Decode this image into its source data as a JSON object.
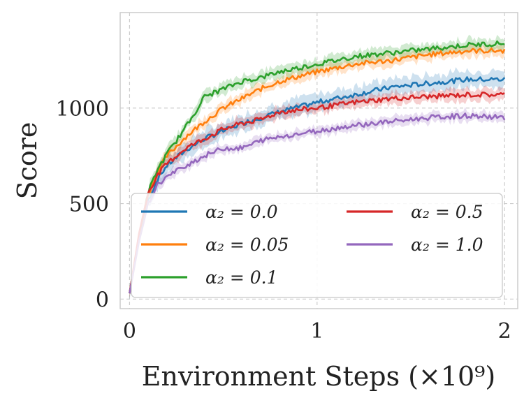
{
  "chart_data": {
    "type": "line",
    "title": "",
    "xlabel": "Environment Steps (×10⁹)",
    "ylabel": "Score",
    "xlim": [
      -0.05,
      2.07
    ],
    "ylim": [
      -50,
      1500
    ],
    "xticks": [
      0,
      1,
      2
    ],
    "xtick_labels": [
      "0",
      "1",
      "2"
    ],
    "yticks": [
      0,
      500,
      1000
    ],
    "ytick_labels": [
      "0",
      "500",
      "1000"
    ],
    "grid": true,
    "legend_position": "lower-center",
    "legend_columns": 2,
    "x": [
      0,
      0.05,
      0.1,
      0.15,
      0.2,
      0.3,
      0.4,
      0.5,
      0.6,
      0.7,
      0.8,
      1.0,
      1.2,
      1.4,
      1.6,
      1.8,
      2.0
    ],
    "series": [
      {
        "name": "α₂ = 0.0",
        "color": "#1f77b4",
        "band": 45,
        "values": [
          30,
          320,
          520,
          630,
          700,
          780,
          840,
          880,
          920,
          950,
          980,
          1030,
          1070,
          1110,
          1130,
          1150,
          1150
        ]
      },
      {
        "name": "α₂ = 0.05",
        "color": "#ff7f0e",
        "band": 30,
        "values": [
          30,
          330,
          550,
          670,
          750,
          850,
          930,
          1000,
          1050,
          1100,
          1140,
          1190,
          1230,
          1250,
          1280,
          1300,
          1300
        ]
      },
      {
        "name": "α₂ = 0.1",
        "color": "#2ca02c",
        "band": 30,
        "values": [
          30,
          330,
          560,
          680,
          760,
          900,
          1060,
          1100,
          1140,
          1160,
          1190,
          1230,
          1270,
          1290,
          1310,
          1330,
          1340
        ]
      },
      {
        "name": "α₂ = 0.5",
        "color": "#d62728",
        "band": 30,
        "values": [
          30,
          340,
          560,
          650,
          710,
          790,
          840,
          890,
          920,
          940,
          980,
          1000,
          1030,
          1050,
          1060,
          1070,
          1070
        ]
      },
      {
        "name": "α₂ = 1.0",
        "color": "#9467bd",
        "band": 25,
        "values": [
          30,
          300,
          500,
          600,
          640,
          700,
          750,
          790,
          790,
          830,
          850,
          880,
          910,
          930,
          950,
          960,
          950
        ]
      }
    ]
  }
}
